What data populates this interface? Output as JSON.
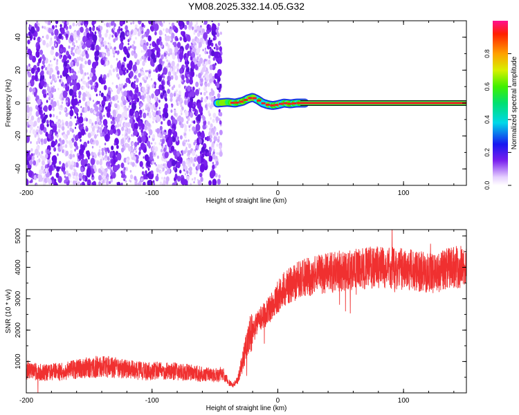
{
  "title": "YM08.2025.332.14.05.G32",
  "chart_data": [
    {
      "type": "heatmap",
      "xlabel": "Height of straight line (km)",
      "ylabel": "Frequency (Hz)",
      "xlim": [
        -200,
        150
      ],
      "ylim": [
        -50,
        50
      ],
      "xticks": [
        -200,
        -100,
        0,
        100
      ],
      "yticks": [
        -40,
        -20,
        0,
        20,
        40
      ],
      "noise_region_x": [
        -200,
        -45
      ],
      "signal_start_x": -48,
      "signal_trace": [
        {
          "x": -48,
          "f": 0
        },
        {
          "x": -40,
          "f": 0.5
        },
        {
          "x": -34,
          "f": 0
        },
        {
          "x": -28,
          "f": 1
        },
        {
          "x": -24,
          "f": 2.5
        },
        {
          "x": -20,
          "f": 3.5
        },
        {
          "x": -16,
          "f": 2
        },
        {
          "x": -12,
          "f": 0
        },
        {
          "x": -8,
          "f": -1
        },
        {
          "x": -4,
          "f": -1.5
        },
        {
          "x": 0,
          "f": -1
        },
        {
          "x": 5,
          "f": 0
        },
        {
          "x": 10,
          "f": -0.5
        },
        {
          "x": 15,
          "f": 0
        },
        {
          "x": 20,
          "f": 0
        },
        {
          "x": 150,
          "f": 0
        }
      ],
      "colorbar": {
        "label": "Normalized spectral amplitude",
        "range": [
          0,
          1
        ],
        "ticks": [
          "0.0",
          "0.2",
          "0.4",
          "0.6",
          "0.8"
        ],
        "tick_values": [
          0,
          0.2,
          0.4,
          0.6,
          0.8
        ]
      }
    },
    {
      "type": "line",
      "xlabel": "Height of straight line (km)",
      "ylabel": "SNR (10 * v/v)",
      "xlim": [
        -200,
        150
      ],
      "ylim": [
        0,
        5200
      ],
      "xticks": [
        -200,
        -100,
        0,
        100
      ],
      "yticks": [
        1000,
        2000,
        3000,
        4000,
        5000
      ],
      "series_color": "#f03030",
      "envelope": [
        {
          "x": -200,
          "y": 700
        },
        {
          "x": -185,
          "y": 650
        },
        {
          "x": -170,
          "y": 700
        },
        {
          "x": -155,
          "y": 800
        },
        {
          "x": -140,
          "y": 850
        },
        {
          "x": -125,
          "y": 780
        },
        {
          "x": -110,
          "y": 700
        },
        {
          "x": -95,
          "y": 700
        },
        {
          "x": -80,
          "y": 680
        },
        {
          "x": -65,
          "y": 620
        },
        {
          "x": -50,
          "y": 560
        },
        {
          "x": -43,
          "y": 600
        },
        {
          "x": -40,
          "y": 380
        },
        {
          "x": -36,
          "y": 230
        },
        {
          "x": -32,
          "y": 380
        },
        {
          "x": -28,
          "y": 1000
        },
        {
          "x": -25,
          "y": 1500
        },
        {
          "x": -20,
          "y": 2050
        },
        {
          "x": -15,
          "y": 2300
        },
        {
          "x": -10,
          "y": 2500
        },
        {
          "x": -5,
          "y": 2750
        },
        {
          "x": 0,
          "y": 3050
        },
        {
          "x": 5,
          "y": 3300
        },
        {
          "x": 10,
          "y": 3450
        },
        {
          "x": 20,
          "y": 3650
        },
        {
          "x": 30,
          "y": 3750
        },
        {
          "x": 45,
          "y": 3850
        },
        {
          "x": 60,
          "y": 3950
        },
        {
          "x": 80,
          "y": 4000
        },
        {
          "x": 100,
          "y": 3950
        },
        {
          "x": 115,
          "y": 3850
        },
        {
          "x": 125,
          "y": 3800
        },
        {
          "x": 135,
          "y": 3950
        },
        {
          "x": 150,
          "y": 4050
        }
      ]
    }
  ]
}
